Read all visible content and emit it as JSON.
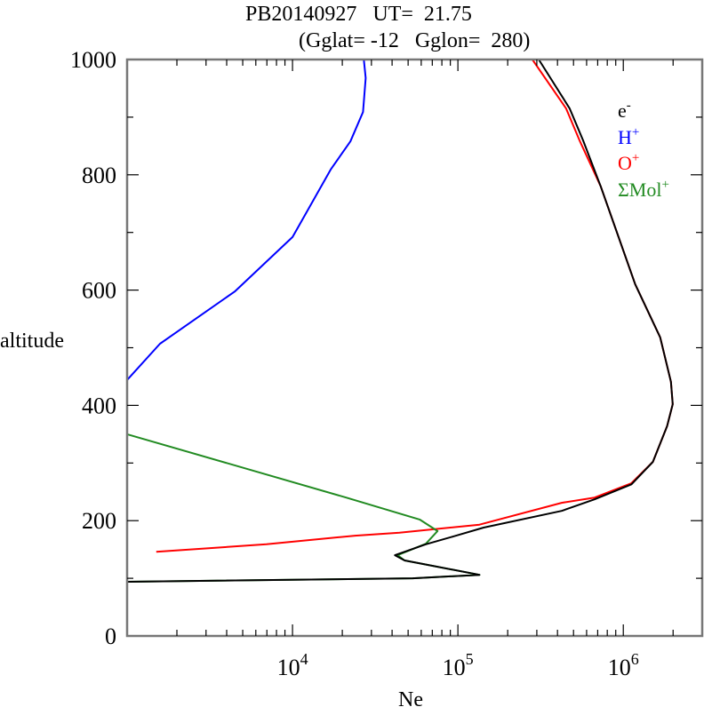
{
  "chart_data": {
    "type": "line",
    "title": "PB20140927   UT=  21.75",
    "subtitle": "(Gglat= -12   Gglon=  280)",
    "xlabel": "Ne",
    "ylabel": "altitude",
    "xscale": "log",
    "xlim": [
      1000,
      3000000
    ],
    "ylim": [
      0,
      1000
    ],
    "x_tick_labels": [
      {
        "value": 10000,
        "base": "10",
        "exp": "4"
      },
      {
        "value": 100000,
        "base": "10",
        "exp": "5"
      },
      {
        "value": 1000000,
        "base": "10",
        "exp": "6"
      }
    ],
    "y_ticks": [
      0,
      200,
      400,
      600,
      800,
      1000
    ],
    "y_tick_labels": [
      "0",
      "200",
      "400",
      "600",
      "800",
      "1000"
    ],
    "y_minor_ticks": [
      100,
      300,
      500,
      700,
      900
    ],
    "grid": false,
    "legend_position": "top-right",
    "series": [
      {
        "name": "e-",
        "label_base": "e",
        "label_sup": "-",
        "color": "#000000",
        "points": [
          [
            1000,
            94
          ],
          [
            53300,
            100
          ],
          [
            135000,
            106
          ],
          [
            47600,
            131
          ],
          [
            41600,
            140
          ],
          [
            64000,
            159
          ],
          [
            95000,
            173
          ],
          [
            143000,
            188
          ],
          [
            424000,
            217
          ],
          [
            670000,
            237
          ],
          [
            1120000,
            263
          ],
          [
            1510000,
            302
          ],
          [
            1840000,
            364
          ],
          [
            1990000,
            402
          ],
          [
            1940000,
            441
          ],
          [
            1670000,
            518
          ],
          [
            1180000,
            610
          ],
          [
            730000,
            780
          ],
          [
            571000,
            860
          ],
          [
            474000,
            915
          ],
          [
            308000,
            1000
          ]
        ]
      },
      {
        "name": "H+",
        "label_base": "H",
        "label_sup": "+",
        "color": "#0000ff",
        "points": [
          [
            1000,
            444
          ],
          [
            1580,
            507
          ],
          [
            4500,
            598
          ],
          [
            10000,
            692
          ],
          [
            17100,
            810
          ],
          [
            22400,
            858
          ],
          [
            26700,
            909
          ],
          [
            27700,
            968
          ],
          [
            27000,
            1000
          ]
        ]
      },
      {
        "name": "O+",
        "label_base": "O",
        "label_sup": "+",
        "color": "#ff0000",
        "points": [
          [
            1500,
            146
          ],
          [
            6950,
            159
          ],
          [
            23900,
            174
          ],
          [
            44300,
            179
          ],
          [
            135000,
            193
          ],
          [
            424000,
            231
          ],
          [
            670000,
            240
          ],
          [
            1120000,
            265
          ],
          [
            1510000,
            302
          ],
          [
            1840000,
            364
          ],
          [
            1990000,
            402
          ],
          [
            1940000,
            441
          ],
          [
            1670000,
            518
          ],
          [
            1180000,
            610
          ],
          [
            730000,
            780
          ],
          [
            543000,
            860
          ],
          [
            451000,
            915
          ],
          [
            282000,
            1000
          ]
        ]
      },
      {
        "name": "ΣMol+",
        "label_base": "ΣMol",
        "label_sup": "+",
        "color": "#228b22",
        "points": [
          [
            1000,
            94
          ],
          [
            53300,
            100
          ],
          [
            135000,
            106
          ],
          [
            47600,
            131
          ],
          [
            43200,
            140
          ],
          [
            64000,
            160
          ],
          [
            75300,
            182
          ],
          [
            58700,
            202
          ],
          [
            21100,
            240
          ],
          [
            1000,
            350
          ]
        ]
      }
    ]
  }
}
